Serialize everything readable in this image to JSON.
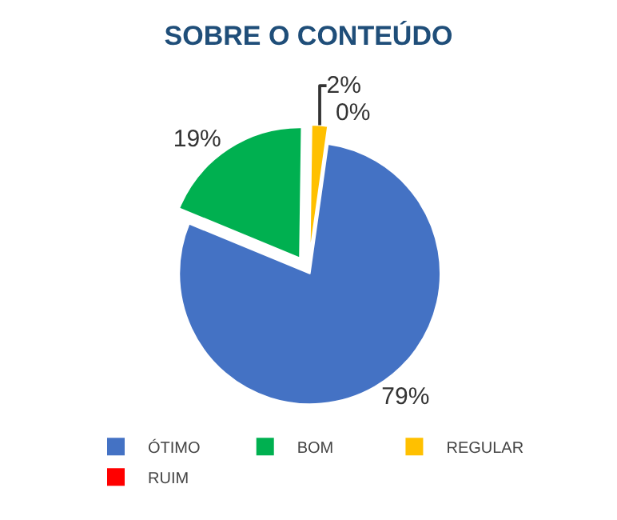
{
  "chart_data": {
    "type": "pie",
    "title": "SOBRE O CONTEÚDO",
    "categories": [
      "ÓTIMO",
      "BOM",
      "REGULAR",
      "RUIM"
    ],
    "values": [
      79,
      19,
      2,
      0
    ],
    "value_labels": [
      "79%",
      "19%",
      "2%",
      "0%"
    ],
    "colors": [
      "#4472c4",
      "#00b050",
      "#ffc000",
      "#ff0000"
    ],
    "legend": "bottom"
  }
}
